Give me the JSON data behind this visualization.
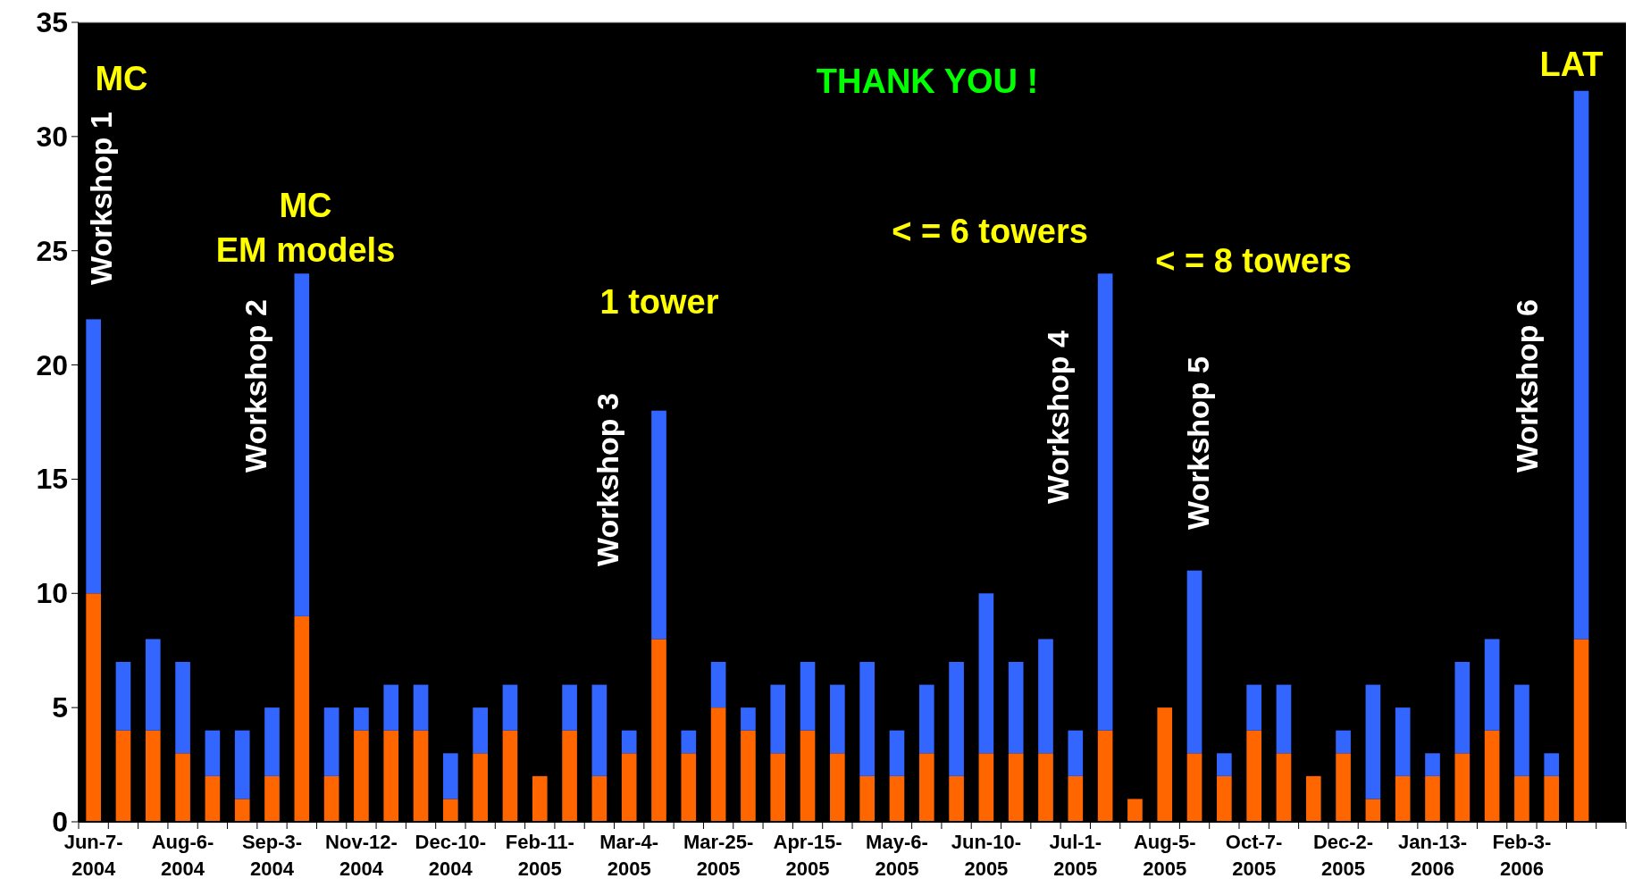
{
  "chart_data": {
    "type": "bar",
    "stacked": true,
    "categories": [
      "Jun-7-2004",
      null,
      null,
      "Aug-6-2004",
      null,
      null,
      "Sep-3-2004",
      null,
      null,
      "Nov-12-2004",
      null,
      null,
      "Dec-10-2004",
      null,
      null,
      "Feb-11-2005",
      null,
      null,
      "Mar-4-2005",
      null,
      null,
      "Mar-25-2005",
      null,
      null,
      "Apr-15-2005",
      null,
      null,
      "May-6-2005",
      null,
      null,
      "Jun-10-2005",
      null,
      null,
      "Jul-1-2005",
      null,
      null,
      "Aug-5-2005",
      null,
      null,
      "Oct-7-2005",
      null,
      null,
      "Dec-2-2005",
      null,
      null,
      "Jan-13-2006",
      null,
      null,
      "Feb-3-2006",
      null,
      null,
      null
    ],
    "series": [
      {
        "color": "#ff6600",
        "values": [
          10,
          4,
          4,
          3,
          2,
          1,
          2,
          9,
          2,
          4,
          4,
          4,
          1,
          3,
          4,
          2,
          4,
          2,
          3,
          8,
          3,
          5,
          4,
          3,
          4,
          3,
          2,
          2,
          3,
          2,
          3,
          3,
          3,
          2,
          4,
          1,
          5,
          3,
          2,
          4,
          3,
          2,
          3,
          1,
          2,
          2,
          3,
          4,
          2,
          2,
          8,
          null
        ]
      },
      {
        "color": "#3366ff",
        "values": [
          12,
          3,
          4,
          4,
          2,
          3,
          3,
          15,
          3,
          1,
          2,
          2,
          2,
          2,
          2,
          0,
          2,
          4,
          1,
          10,
          1,
          2,
          1,
          3,
          3,
          3,
          5,
          2,
          3,
          5,
          7,
          4,
          5,
          2,
          20,
          0,
          0,
          8,
          1,
          2,
          3,
          0,
          1,
          5,
          3,
          1,
          4,
          4,
          4,
          1,
          24,
          null
        ]
      }
    ],
    "ylim": [
      0,
      35
    ],
    "yticks": [
      0,
      5,
      10,
      15,
      20,
      25,
      30,
      35
    ],
    "grid": false,
    "annotations": [
      "MC",
      "Workshop 1",
      "MC",
      "EM models",
      "Workshop 2",
      "1 tower",
      "Workshop 3",
      "THANK YOU !",
      "< = 6 towers",
      "Workshop 4",
      "< = 8 towers",
      "Workshop 5",
      "Workshop 6",
      "LAT"
    ]
  }
}
